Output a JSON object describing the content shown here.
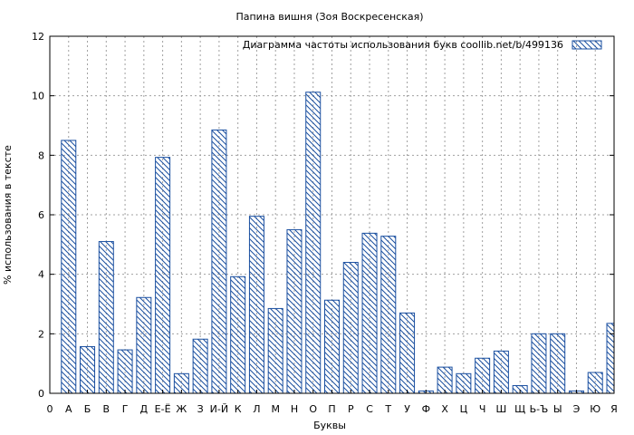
{
  "chart_data": {
    "type": "bar",
    "title": "Папина вишня (Зоя Воскресенская)",
    "xlabel": "Буквы",
    "ylabel": "% использования в тексте",
    "legend": {
      "label": "Диаграмма частоты использования букв  coollib.net/b/499136",
      "placement": "top-right"
    },
    "grid": true,
    "ylim": [
      0,
      12
    ],
    "yticks": [
      0,
      2,
      4,
      6,
      8,
      10,
      12
    ],
    "categories": [
      "0",
      "А",
      "Б",
      "В",
      "Г",
      "Д",
      "Е-Ё",
      "Ж",
      "З",
      "И-Й",
      "К",
      "Л",
      "М",
      "Н",
      "О",
      "П",
      "Р",
      "С",
      "Т",
      "У",
      "Ф",
      "Х",
      "Ц",
      "Ч",
      "Ш",
      "Щ",
      "Ь-Ъ",
      "Ы",
      "Э",
      "Ю",
      "Я"
    ],
    "values": [
      0,
      8.5,
      1.57,
      5.1,
      1.46,
      3.22,
      7.93,
      0.66,
      1.82,
      8.85,
      3.92,
      5.95,
      2.85,
      5.5,
      10.12,
      3.13,
      4.4,
      5.38,
      5.28,
      2.7,
      0.08,
      0.88,
      0.66,
      1.18,
      1.42,
      0.26,
      2.0,
      2.0,
      0.08,
      0.7,
      2.35
    ]
  }
}
